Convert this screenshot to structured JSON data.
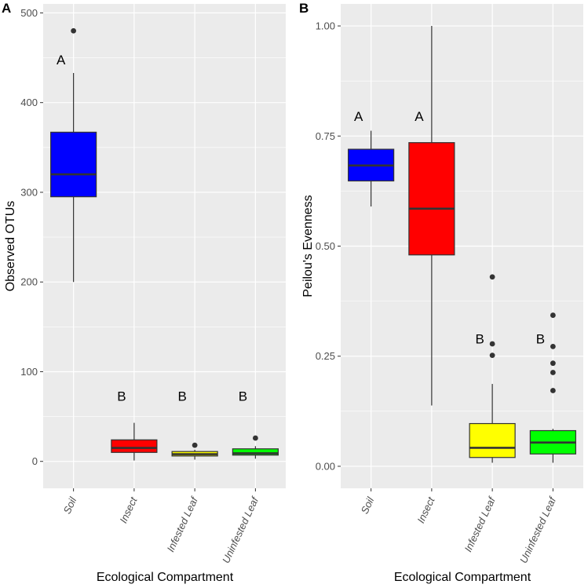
{
  "chart_data": [
    {
      "type": "box",
      "panel": "A",
      "title": "",
      "xlabel": "Ecological Compartment",
      "ylabel": "Observed OTUs",
      "ylim": [
        -30,
        510
      ],
      "yticks": [
        0,
        100,
        200,
        300,
        400,
        500
      ],
      "ytick_labels": [
        "0",
        "100",
        "200",
        "300",
        "400",
        "500"
      ],
      "categories": [
        "Soil",
        "Insect",
        "Infested Leaf",
        "Uninfested Leaf"
      ],
      "boxes": [
        {
          "category": "Soil",
          "fill": "#0000ff",
          "whisker_low": 200,
          "q1": 295,
          "median": 320,
          "q3": 367,
          "whisker_high": 433,
          "outliers": [
            480
          ],
          "letter": "A",
          "letter_y": 448
        },
        {
          "category": "Insect",
          "fill": "#ff0000",
          "whisker_low": 1,
          "q1": 10,
          "median": 15,
          "q3": 24,
          "whisker_high": 43,
          "outliers": [],
          "letter": "B",
          "letter_y": 73
        },
        {
          "category": "Infested Leaf",
          "fill": "#ffff00",
          "whisker_low": 2,
          "q1": 6,
          "median": 8,
          "q3": 11,
          "whisker_high": 13,
          "outliers": [
            18
          ],
          "letter": "B",
          "letter_y": 73
        },
        {
          "category": "Uninfested Leaf",
          "fill": "#00ff00",
          "whisker_low": 3,
          "q1": 7,
          "median": 9,
          "q3": 14,
          "whisker_high": 17,
          "outliers": [
            26
          ],
          "letter": "B",
          "letter_y": 73
        }
      ]
    },
    {
      "type": "box",
      "panel": "B",
      "title": "",
      "xlabel": "Ecological Compartment",
      "ylabel": "Peilou's Evenness",
      "ylim": [
        -0.05,
        1.05
      ],
      "yticks": [
        0,
        0.25,
        0.5,
        0.75,
        1.0
      ],
      "ytick_labels": [
        "0.00",
        "0.25",
        "0.50",
        "0.75",
        "1.00"
      ],
      "categories": [
        "Soil",
        "Insect",
        "Infested Leaf",
        "Uninfested Leaf"
      ],
      "boxes": [
        {
          "category": "Soil",
          "fill": "#0000ff",
          "whisker_low": 0.59,
          "q1": 0.648,
          "median": 0.683,
          "q3": 0.72,
          "whisker_high": 0.762,
          "outliers": [],
          "letter": "A",
          "letter_y": 0.795
        },
        {
          "category": "Insect",
          "fill": "#ff0000",
          "whisker_low": 0.138,
          "q1": 0.48,
          "median": 0.585,
          "q3": 0.735,
          "whisker_high": 1.0,
          "outliers": [],
          "letter": "A",
          "letter_y": 0.795
        },
        {
          "category": "Infested Leaf",
          "fill": "#ffff00",
          "whisker_low": 0.008,
          "q1": 0.02,
          "median": 0.042,
          "q3": 0.097,
          "whisker_high": 0.187,
          "outliers": [
            0.252,
            0.278,
            0.43
          ],
          "letter": "B",
          "letter_y": 0.29
        },
        {
          "category": "Uninfested Leaf",
          "fill": "#00ff00",
          "whisker_low": 0.008,
          "q1": 0.028,
          "median": 0.054,
          "q3": 0.081,
          "whisker_high": 0.085,
          "outliers": [
            0.172,
            0.213,
            0.234,
            0.272,
            0.343
          ],
          "letter": "B",
          "letter_y": 0.29
        }
      ]
    }
  ],
  "style": {
    "panel_bg": "#ebebeb",
    "grid": "#ffffff",
    "box_stroke": "#333333",
    "text": "#000000",
    "tick_text": "#4d4d4d"
  }
}
